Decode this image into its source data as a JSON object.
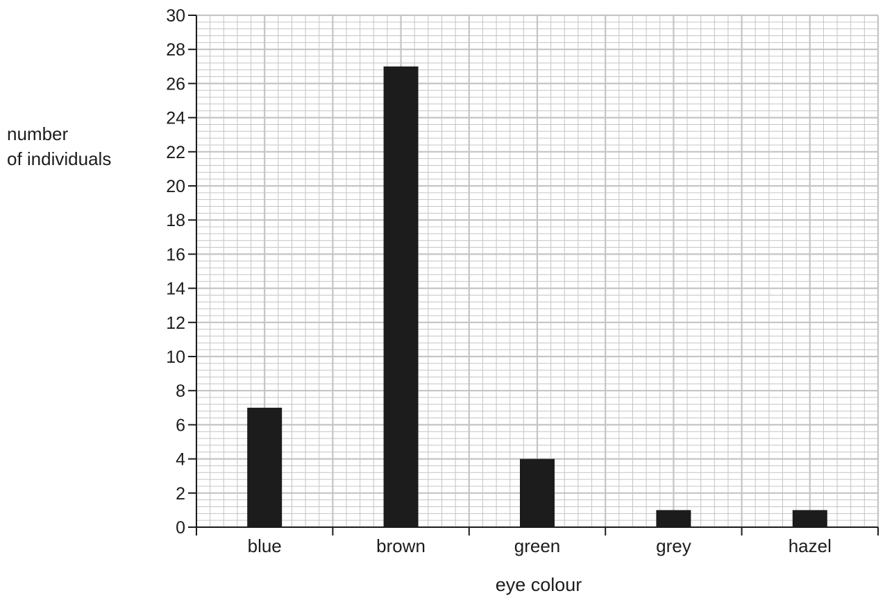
{
  "chart_data": {
    "type": "bar",
    "categories": [
      "blue",
      "brown",
      "green",
      "grey",
      "hazel"
    ],
    "values": [
      7,
      27,
      4,
      1,
      1
    ],
    "xlabel": "eye colour",
    "ylabel_lines": [
      "number",
      "of individuals"
    ],
    "ylim": [
      0,
      30
    ],
    "yticks": [
      "0",
      "2",
      "4",
      "6",
      "8",
      "10",
      "12",
      "14",
      "16",
      "18",
      "20",
      "22",
      "24",
      "26",
      "28",
      "30"
    ],
    "grid": true,
    "bar_color": "#1c1c1c",
    "grid_color": "#c4c4c4"
  }
}
